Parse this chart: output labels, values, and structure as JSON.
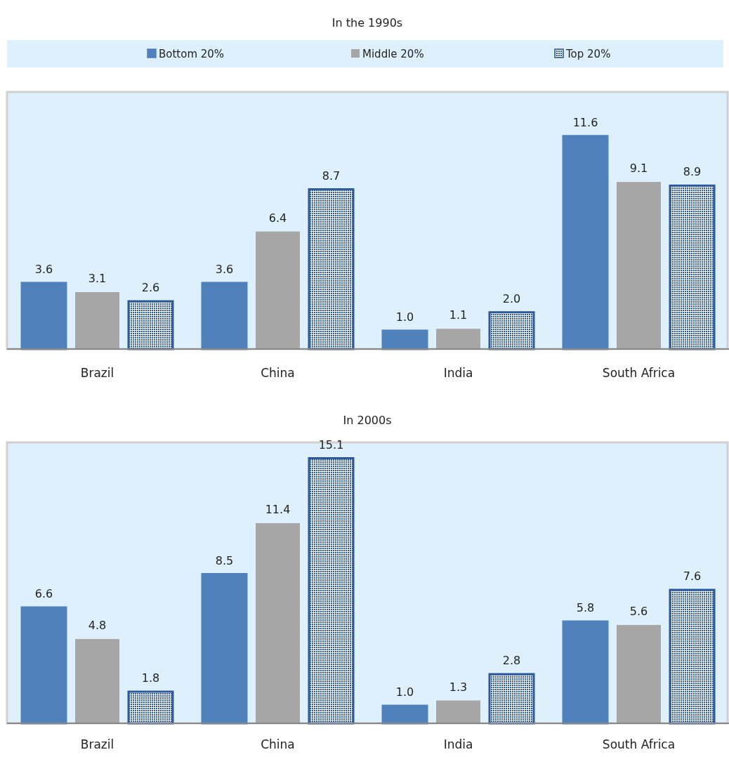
{
  "chart_data": [
    {
      "type": "bar",
      "title": "In the 1990s",
      "categories": [
        "Brazil",
        "China",
        "India",
        "South Africa"
      ],
      "series": [
        {
          "name": "Bottom 20%",
          "color": "#4f81bd",
          "values": [
            3.6,
            3.6,
            1.0,
            11.6
          ],
          "value_labels": [
            "3.6",
            "3.6",
            "1.0",
            "11.6"
          ]
        },
        {
          "name": "Middle 20%",
          "color": "#a6a6a6",
          "values": [
            3.1,
            6.4,
            1.1,
            9.1
          ],
          "value_labels": [
            "3.1",
            "6.4",
            "1.1",
            "9.1"
          ]
        },
        {
          "name": "Top 20%",
          "color": "#2e5a9a",
          "values": [
            2.6,
            8.7,
            2.0,
            8.9
          ],
          "value_labels": [
            "2.6",
            "8.7",
            "2.0",
            "8.9"
          ]
        }
      ],
      "ylim": [
        0,
        14
      ],
      "legend": "top"
    },
    {
      "type": "bar",
      "title": "In 2000s",
      "categories": [
        "Brazil",
        "China",
        "India",
        "South Africa"
      ],
      "series": [
        {
          "name": "Bottom 20%",
          "color": "#4f81bd",
          "values": [
            6.6,
            8.5,
            1.0,
            5.8
          ],
          "value_labels": [
            "6.6",
            "8.5",
            "1.0",
            "5.8"
          ]
        },
        {
          "name": "Middle 20%",
          "color": "#a6a6a6",
          "values": [
            4.8,
            11.4,
            1.3,
            5.6
          ],
          "value_labels": [
            "4.8",
            "11.4",
            "1.3",
            "5.6"
          ]
        },
        {
          "name": "Top 20%",
          "color": "#2e5a9a",
          "values": [
            1.8,
            15.1,
            2.8,
            7.6
          ],
          "value_labels": [
            "1.8",
            "15.1",
            "2.8",
            "7.6"
          ]
        }
      ],
      "ylim": [
        0,
        16
      ],
      "legend": false
    }
  ]
}
